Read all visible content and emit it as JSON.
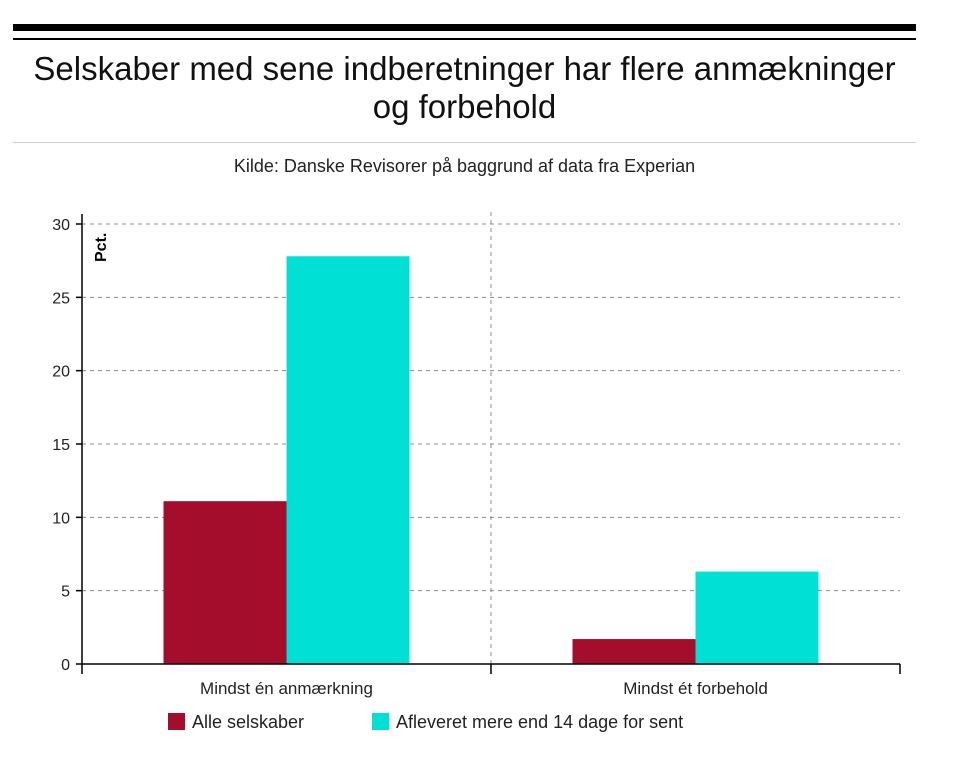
{
  "title": "Selskaber med sene indberetninger har flere anmækninger og forbehold",
  "subtitle": "Kilde: Danske Revisorer på baggrund af data fra Experian",
  "chart_data": {
    "type": "bar",
    "title": "Selskaber med sene indberetninger har flere anmækninger og forbehold",
    "subtitle": "Kilde: Danske Revisorer på baggrund af data fra Experian",
    "xlabel": "",
    "ylabel": "Pct.",
    "ylim": [
      0,
      30
    ],
    "yticks": [
      0,
      5,
      10,
      15,
      20,
      25,
      30
    ],
    "grid": true,
    "legend_position": "bottom",
    "categories": [
      "Mindst én anmærkning",
      "Mindst ét forbehold"
    ],
    "series": [
      {
        "name": "Alle selskaber",
        "color": "#a50d2d",
        "values": [
          11.1,
          1.7
        ]
      },
      {
        "name": "Afleveret mere end 14 dage for sent",
        "color": "#00e0d4",
        "values": [
          27.8,
          6.3
        ]
      }
    ]
  }
}
